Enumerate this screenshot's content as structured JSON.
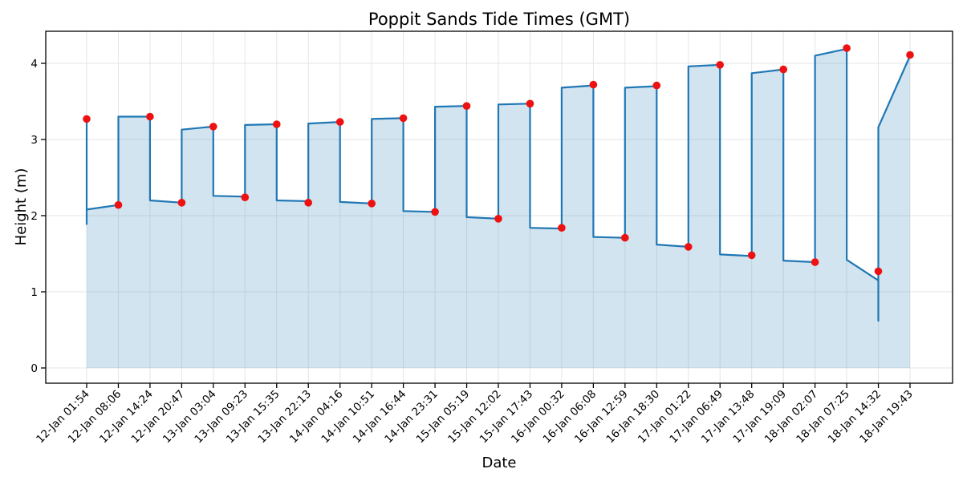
{
  "chart_data": {
    "type": "line",
    "title": "Poppit Sands Tide Times (GMT)",
    "xlabel": "Date",
    "ylabel": "Height (m)",
    "categories": [
      "12-Jan 01:54",
      "12-Jan 08:06",
      "12-Jan 14:24",
      "12-Jan 20:47",
      "13-Jan 03:04",
      "13-Jan 09:23",
      "13-Jan 15:35",
      "13-Jan 22:13",
      "14-Jan 04:16",
      "14-Jan 10:51",
      "14-Jan 16:44",
      "14-Jan 23:31",
      "15-Jan 05:19",
      "15-Jan 12:02",
      "15-Jan 17:43",
      "16-Jan 00:32",
      "16-Jan 06:08",
      "16-Jan 12:59",
      "16-Jan 18:30",
      "17-Jan 01:22",
      "17-Jan 06:49",
      "17-Jan 13:48",
      "17-Jan 19:09",
      "18-Jan 02:07",
      "18-Jan 07:25",
      "18-Jan 14:32",
      "18-Jan 19:43"
    ],
    "series": [
      {
        "name": "Tide height (m)",
        "values": [
          3.27,
          2.14,
          3.3,
          2.17,
          3.17,
          2.24,
          3.2,
          2.17,
          3.23,
          2.16,
          3.28,
          2.05,
          3.44,
          1.96,
          3.47,
          1.84,
          3.72,
          1.71,
          3.71,
          1.59,
          3.98,
          1.48,
          3.92,
          1.39,
          4.2,
          1.27,
          4.11
        ]
      }
    ],
    "tide_types": [
      "high",
      "low",
      "high",
      "low",
      "high",
      "low",
      "high",
      "low",
      "high",
      "low",
      "high",
      "low",
      "high",
      "low",
      "high",
      "low",
      "high",
      "low",
      "high",
      "low",
      "high",
      "low",
      "high",
      "low",
      "high",
      "low",
      "high"
    ],
    "yticks": [
      0,
      1,
      2,
      3,
      4
    ],
    "ylim": [
      -0.2,
      4.42
    ],
    "grid": true,
    "legend": false,
    "marker": "red-circle",
    "line_style": "steps-pre-with-spikes",
    "line_path_note": "Polyline actually drawn, as [x_index, height_m, stroke_only_flag]; stroke-only points (flag 1) are spike tails excluded from the area fill.",
    "line_path": [
      [
        0,
        3.27,
        1
      ],
      [
        0,
        1.89,
        1
      ],
      [
        0,
        2.08,
        0
      ],
      [
        1,
        2.14,
        0
      ],
      [
        1,
        3.3,
        0
      ],
      [
        2,
        3.3,
        0
      ],
      [
        2,
        2.2,
        0
      ],
      [
        3,
        2.17,
        0
      ],
      [
        3,
        3.13,
        0
      ],
      [
        4,
        3.17,
        0
      ],
      [
        4,
        2.26,
        0
      ],
      [
        5,
        2.25,
        0
      ],
      [
        5,
        3.19,
        0
      ],
      [
        6,
        3.2,
        0
      ],
      [
        6,
        2.2,
        0
      ],
      [
        7,
        2.19,
        0
      ],
      [
        7,
        3.21,
        0
      ],
      [
        8,
        3.23,
        0
      ],
      [
        8,
        2.18,
        0
      ],
      [
        9,
        2.16,
        0
      ],
      [
        9,
        3.27,
        0
      ],
      [
        10,
        3.28,
        0
      ],
      [
        10,
        2.06,
        0
      ],
      [
        11,
        2.05,
        0
      ],
      [
        11,
        3.43,
        0
      ],
      [
        12,
        3.44,
        0
      ],
      [
        12,
        1.98,
        0
      ],
      [
        13,
        1.96,
        0
      ],
      [
        13,
        3.46,
        0
      ],
      [
        14,
        3.47,
        0
      ],
      [
        14,
        1.84,
        0
      ],
      [
        15,
        1.83,
        0
      ],
      [
        15,
        3.68,
        0
      ],
      [
        16,
        3.71,
        0
      ],
      [
        16,
        1.72,
        0
      ],
      [
        17,
        1.71,
        0
      ],
      [
        17,
        3.68,
        0
      ],
      [
        18,
        3.7,
        0
      ],
      [
        18,
        1.62,
        0
      ],
      [
        19,
        1.59,
        0
      ],
      [
        19,
        3.96,
        0
      ],
      [
        20,
        3.98,
        0
      ],
      [
        20,
        1.49,
        0
      ],
      [
        21,
        1.47,
        0
      ],
      [
        21,
        3.87,
        0
      ],
      [
        22,
        3.92,
        0
      ],
      [
        22,
        1.41,
        0
      ],
      [
        23,
        1.39,
        0
      ],
      [
        23,
        4.1,
        0
      ],
      [
        24,
        4.19,
        0
      ],
      [
        24,
        1.42,
        0
      ],
      [
        25,
        1.15,
        0
      ],
      [
        25,
        0.62,
        1
      ],
      [
        25,
        3.16,
        0
      ],
      [
        26,
        4.1,
        0
      ]
    ]
  },
  "colors": {
    "line": "#1f77b4",
    "fill": "rgba(31,119,180,0.2)",
    "marker": "#ee1111",
    "grid": "#e6e6e6",
    "spine": "#000000",
    "text": "#000000",
    "background": "#ffffff"
  }
}
